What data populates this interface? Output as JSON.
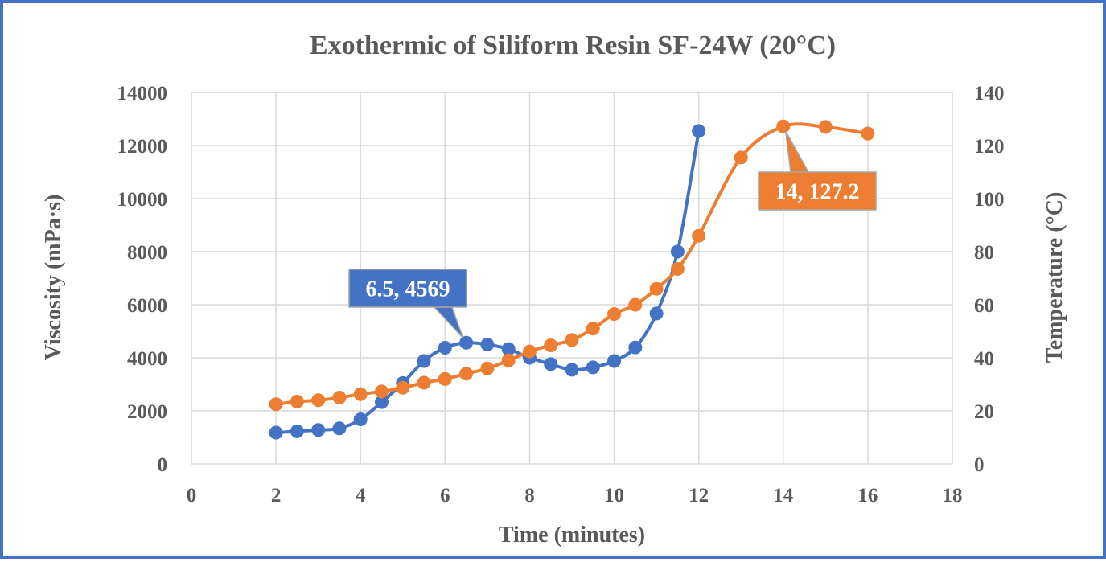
{
  "chart_data": {
    "type": "line",
    "title": "Exothermic of Siliform Resin SF-24W (20°C)",
    "xlabel": "Time (minutes)",
    "ylabel": "Viscosity (mPa·s)",
    "y2label": "Temperature (°C)",
    "xlim": [
      0,
      18
    ],
    "ylim": [
      0,
      14000
    ],
    "y2lim": [
      0,
      140
    ],
    "x_ticks": [
      "0",
      "2",
      "4",
      "6",
      "8",
      "10",
      "12",
      "14",
      "16",
      "18"
    ],
    "y_ticks": [
      "0",
      "2000",
      "4000",
      "6000",
      "8000",
      "10000",
      "12000",
      "14000"
    ],
    "y2_ticks": [
      "0",
      "20",
      "40",
      "60",
      "80",
      "100",
      "120",
      "140"
    ],
    "grid": true,
    "legend": "none",
    "smooth": true,
    "series": [
      {
        "axis": "left",
        "color": "#4472C4",
        "x": [
          2,
          2.5,
          3,
          3.5,
          4,
          4.5,
          5,
          5.5,
          6,
          6.5,
          7,
          7.5,
          8,
          8.5,
          9,
          9.5,
          10,
          10.5,
          11,
          11.5,
          12
        ],
        "values": [
          1180,
          1230,
          1280,
          1340,
          1680,
          2330,
          3050,
          3880,
          4380,
          4569,
          4500,
          4330,
          4000,
          3760,
          3550,
          3640,
          3880,
          4390,
          5670,
          8000,
          12550
        ]
      },
      {
        "axis": "right",
        "color": "#ED7D31",
        "x": [
          2,
          2.5,
          3,
          3.5,
          4,
          4.5,
          5,
          5.5,
          6,
          6.5,
          7,
          7.5,
          8,
          8.5,
          9,
          9.5,
          10,
          10.5,
          11,
          11.5,
          12,
          13,
          14,
          15,
          16
        ],
        "values": [
          22.5,
          23.5,
          24,
          25,
          26.3,
          27.3,
          28.7,
          30.6,
          32,
          34,
          36,
          39,
          42.4,
          44.7,
          46.7,
          51,
          56.5,
          60,
          66,
          73.5,
          86,
          115.5,
          127.2,
          127,
          124.5
        ]
      }
    ],
    "annotations": [
      {
        "series": 0,
        "x": 6.5,
        "y": 4569,
        "text": "6.5, 4569",
        "bg": "#4472C4"
      },
      {
        "series": 1,
        "x": 14,
        "y": 127.2,
        "text": "14, 127.2",
        "bg": "#ED7D31"
      }
    ]
  }
}
